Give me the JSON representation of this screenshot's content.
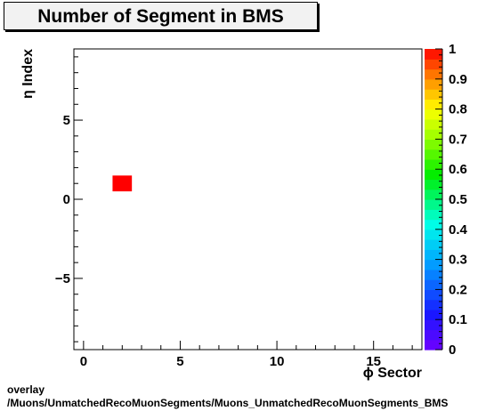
{
  "chart_data": {
    "type": "heatmap",
    "title": "Number of Segment in BMS",
    "xlabel": "ϕ Sector",
    "ylabel": "η Index",
    "xlim": [
      -0.5,
      17.5
    ],
    "ylim": [
      -9.5,
      9.5
    ],
    "x_ticks": [
      0,
      5,
      10,
      15
    ],
    "y_ticks": [
      -5,
      0,
      5
    ],
    "colorbar": {
      "min": 0,
      "max": 1,
      "ticks": [
        "0",
        "0.1",
        "0.2",
        "0.3",
        "0.4",
        "0.5",
        "0.6",
        "0.7",
        "0.8",
        "0.9",
        "1"
      ]
    },
    "cells": [
      {
        "x": 2,
        "y": 1,
        "value": 1
      }
    ],
    "grid": false
  },
  "footer": {
    "line1": "overlay",
    "line2": "/Muons/UnmatchedRecoMuonSegments/Muons_UnmatchedRecoMuonSegments_BMS"
  }
}
